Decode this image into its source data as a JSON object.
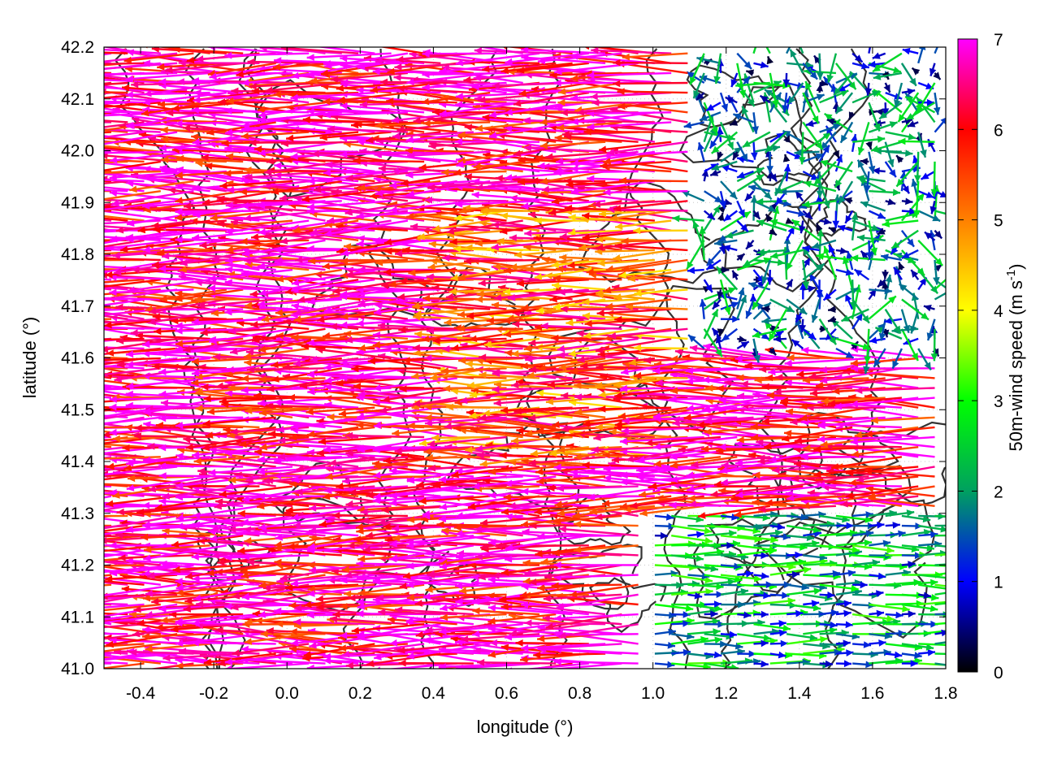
{
  "chart_data": {
    "type": "vector_field",
    "xlabel": "longitude (°)",
    "ylabel": "latitude (°)",
    "xlim": [
      -0.5,
      1.8
    ],
    "ylim": [
      41.0,
      42.2
    ],
    "x_ticks": [
      -0.4,
      -0.2,
      0.0,
      0.2,
      0.4,
      0.6,
      0.8,
      1.0,
      1.2,
      1.4,
      1.6,
      1.8
    ],
    "x_tick_labels": [
      "-0.4",
      "-0.2",
      "0.0",
      "0.2",
      "0.4",
      "0.6",
      "0.8",
      "1.0",
      "1.2",
      "1.4",
      "1.6",
      "1.8"
    ],
    "y_ticks": [
      41.0,
      41.1,
      41.2,
      41.3,
      41.4,
      41.5,
      41.6,
      41.7,
      41.8,
      41.9,
      42.0,
      42.1,
      42.2
    ],
    "y_tick_labels": [
      "41.0",
      "41.1",
      "41.2",
      "41.3",
      "41.4",
      "41.5",
      "41.6",
      "41.7",
      "41.8",
      "41.9",
      "42.0",
      "42.1",
      "42.2"
    ],
    "grid": true,
    "colorbar": {
      "label_main": "50m-wind speed (m s",
      "label_sup": "-1",
      "label_end": ")",
      "range": [
        0,
        7
      ],
      "ticks": [
        0,
        1,
        2,
        3,
        4,
        5,
        6,
        7
      ],
      "tick_labels": [
        "0",
        "1",
        "2",
        "3",
        "4",
        "5",
        "6",
        "7"
      ],
      "palette": [
        "#000000",
        "#0000ff",
        "#00a060",
        "#00ff00",
        "#ffff00",
        "#ff8000",
        "#ff0000",
        "#ff00ff"
      ]
    },
    "contour_color": "#333333",
    "wind_field_regions": [
      {
        "region": "west",
        "lon_range": [
          -0.5,
          0.5
        ],
        "lat_range": [
          41.0,
          42.2
        ],
        "direction": "westward",
        "typical_speed": 6.5
      },
      {
        "region": "central",
        "lon_range": [
          0.5,
          1.1
        ],
        "lat_range": [
          41.4,
          41.9
        ],
        "direction": "westward",
        "typical_speed": 5.5
      },
      {
        "region": "northeast",
        "lon_range": [
          1.1,
          1.8
        ],
        "lat_range": [
          41.6,
          42.2
        ],
        "direction": "variable",
        "typical_speed": 1.5
      },
      {
        "region": "southeast",
        "lon_range": [
          1.0,
          1.8
        ],
        "lat_range": [
          41.0,
          41.3
        ],
        "direction": "eastward",
        "typical_speed": 2.0
      }
    ]
  }
}
